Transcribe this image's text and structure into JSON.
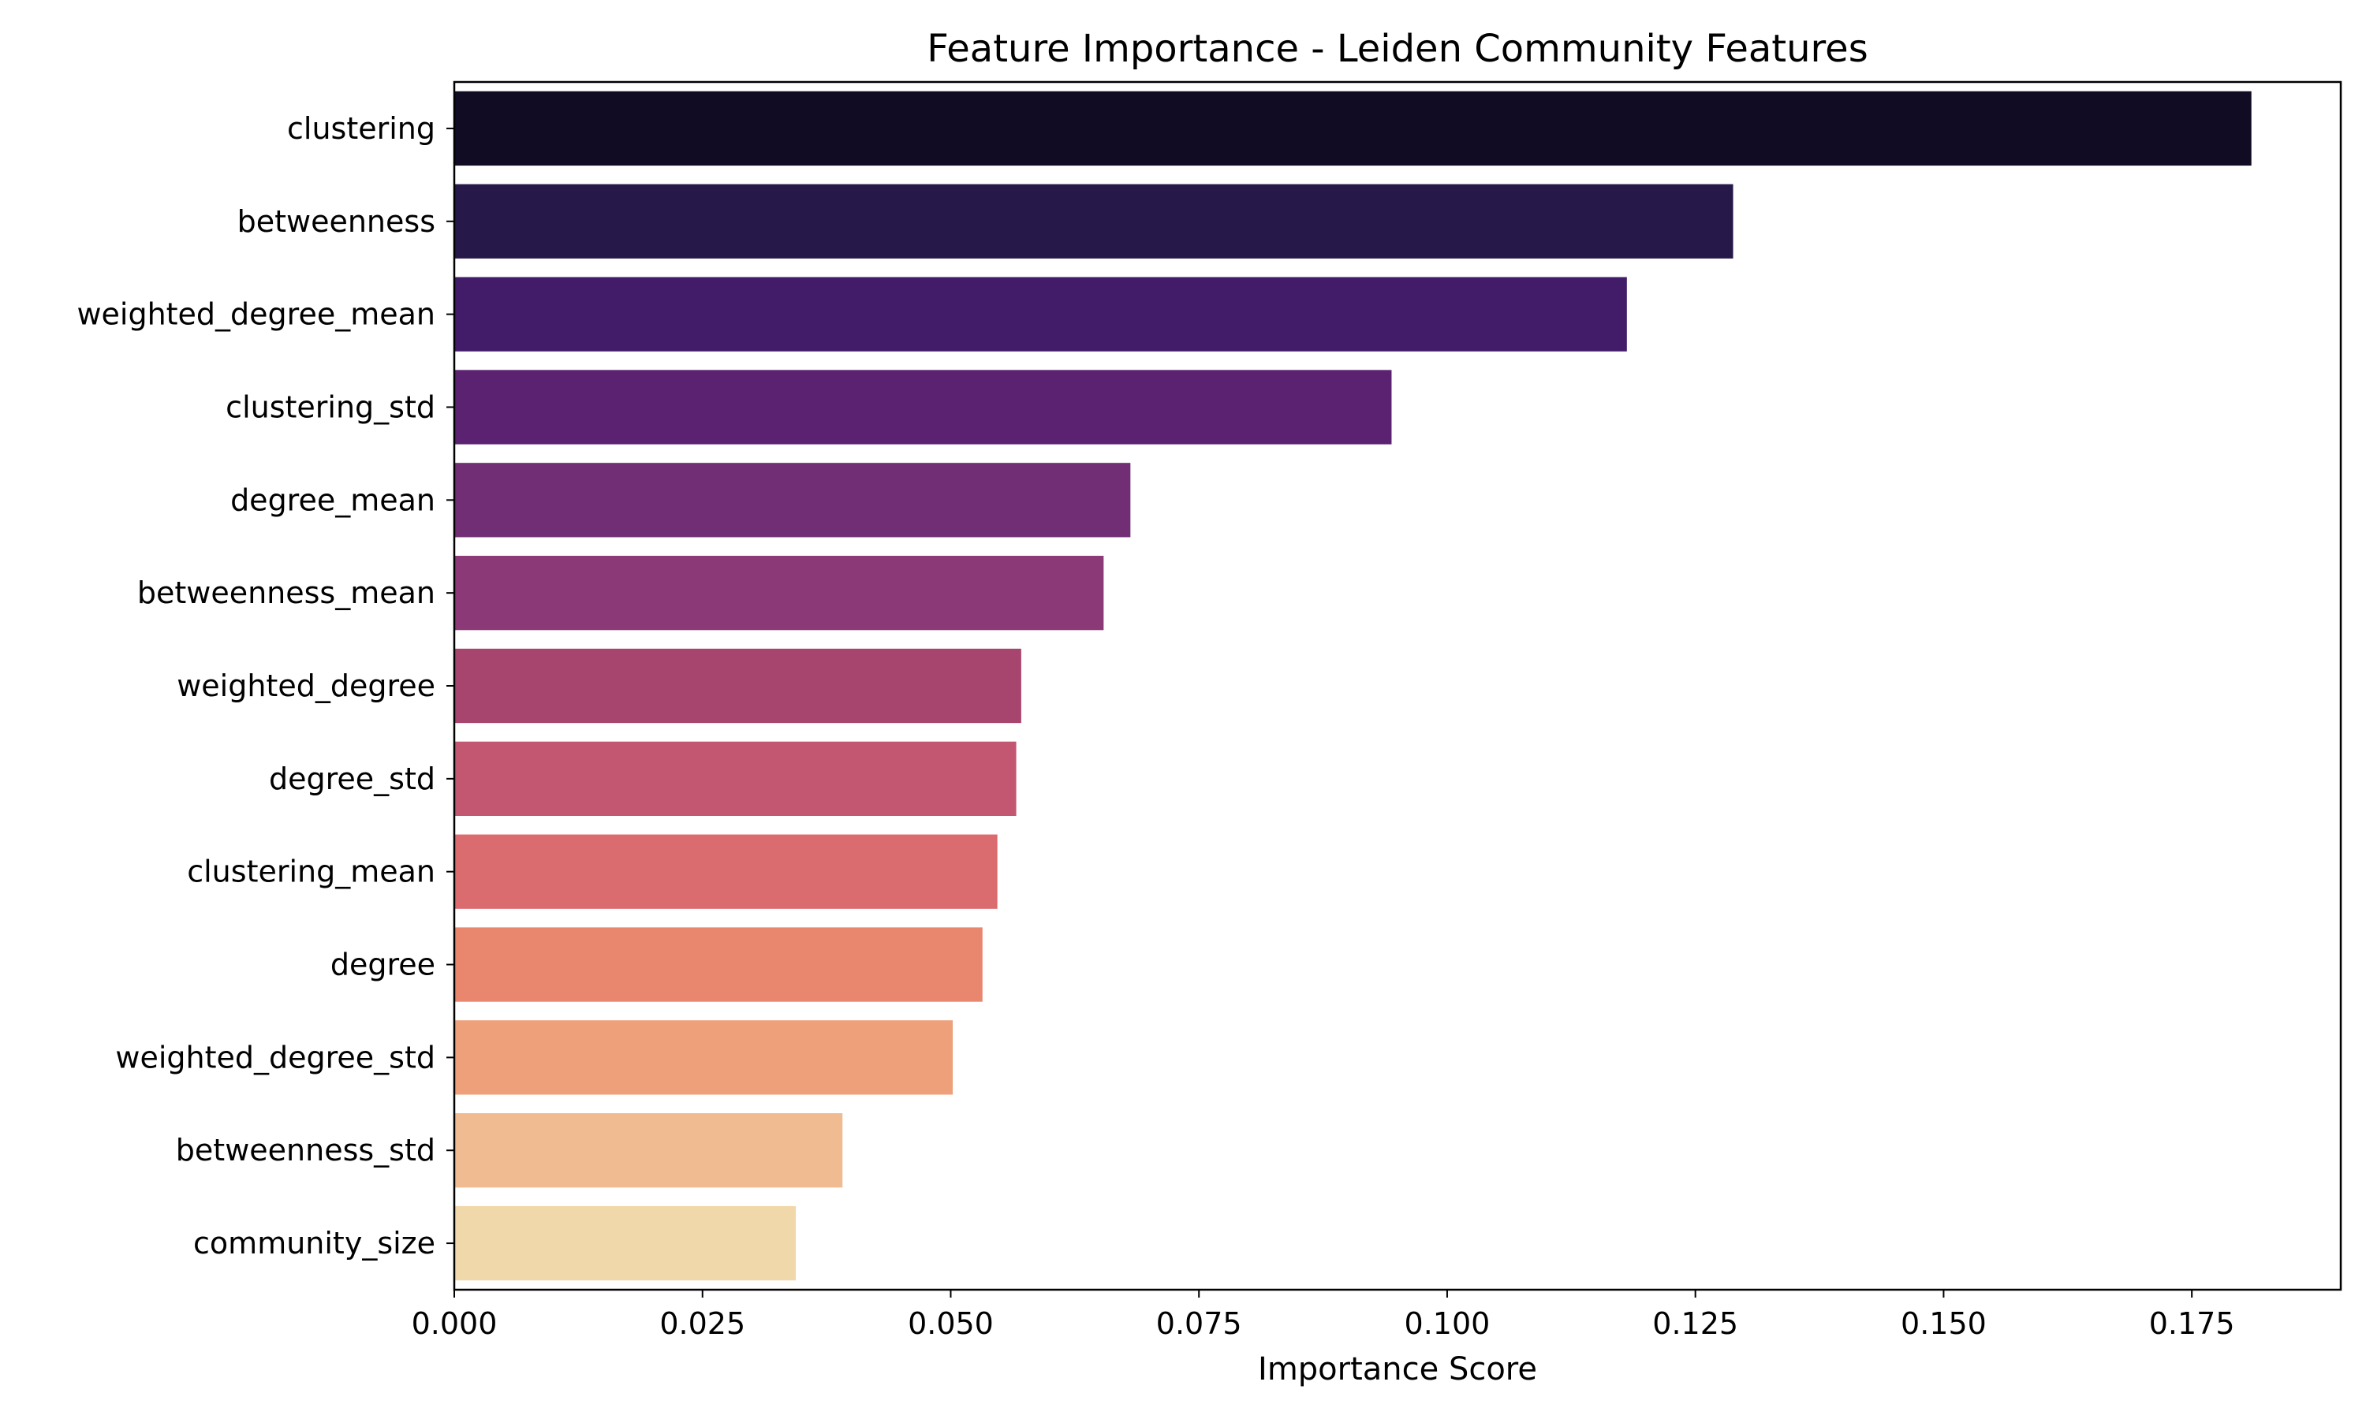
{
  "chart_data": {
    "type": "bar",
    "orientation": "horizontal",
    "title": "Feature Importance - Leiden Community Features",
    "xlabel": "Importance Score",
    "ylabel": "",
    "categories": [
      "clustering",
      "betweenness",
      "weighted_degree_mean",
      "clustering_std",
      "degree_mean",
      "betweenness_mean",
      "weighted_degree",
      "degree_std",
      "clustering_mean",
      "degree",
      "weighted_degree_std",
      "betweenness_std",
      "community_size"
    ],
    "values": [
      0.181,
      0.1288,
      0.1181,
      0.0944,
      0.0681,
      0.0654,
      0.0571,
      0.0566,
      0.0547,
      0.0532,
      0.0502,
      0.0391,
      0.0344
    ],
    "colors": [
      "#110c24",
      "#261848",
      "#421c69",
      "#5a2271",
      "#722e75",
      "#8c3978",
      "#a8456f",
      "#c35670",
      "#da6b6f",
      "#e8866e",
      "#eda07a",
      "#f0bb90",
      "#f1d8aa"
    ],
    "xlim": [
      0,
      0.19
    ],
    "xticks": [
      "0.000",
      "0.025",
      "0.050",
      "0.075",
      "0.100",
      "0.125",
      "0.150",
      "0.175"
    ],
    "grid": false,
    "legend": "none"
  }
}
